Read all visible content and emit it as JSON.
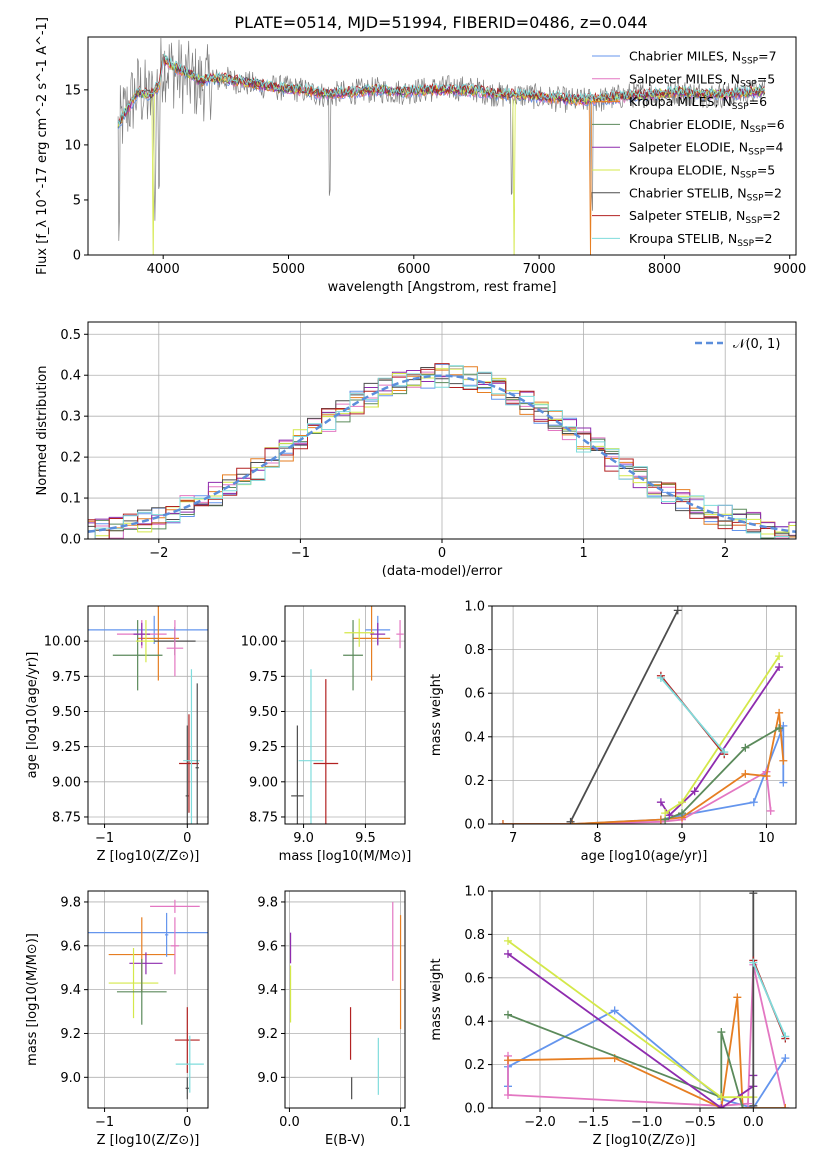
{
  "title": "PLATE=0514, MJD=51994, FIBERID=0486, z=0.044",
  "colors": {
    "Chabrier MILES": "#6495ED",
    "Salpeter MILES": "#E377C2",
    "Kroupa MILES": "#E67E22",
    "Chabrier ELODIE": "#5B8A5B",
    "Salpeter ELODIE": "#8E2CAE",
    "Kroupa ELODIE": "#D4E84A",
    "Chabrier STELIB": "#4D4D4D",
    "Salpeter STELIB": "#B22222",
    "Kroupa STELIB": "#7FDCDC",
    "data": "#7F7F7F",
    "normal": "#5B8EDB"
  },
  "chart_data": [
    {
      "id": "spectrum",
      "type": "line",
      "title": "PLATE=0514, MJD=51994, FIBERID=0486, z=0.044",
      "xlabel": "wavelength [Angstrom, rest frame]",
      "ylabel": "Flux [f_λ 10^-17 erg cm^-2 s^-1 A^-1]",
      "xlim": [
        3400,
        9050
      ],
      "ylim": [
        0,
        19.8
      ],
      "xticks": [
        4000,
        5000,
        6000,
        7000,
        8000,
        9000
      ],
      "yticks": [
        0,
        5,
        10,
        15
      ],
      "legend_position": "upper right",
      "legend": [
        {
          "name": "Chabrier MILES",
          "nssp": "7"
        },
        {
          "name": "Salpeter MILES",
          "nssp": "5"
        },
        {
          "name": "Kroupa MILES",
          "nssp": "6"
        },
        {
          "name": "Chabrier ELODIE",
          "nssp": "6"
        },
        {
          "name": "Salpeter ELODIE",
          "nssp": "4"
        },
        {
          "name": "Kroupa ELODIE",
          "nssp": "5"
        },
        {
          "name": "Chabrier STELIB",
          "nssp": "2"
        },
        {
          "name": "Salpeter STELIB",
          "nssp": "2"
        },
        {
          "name": "Kroupa STELIB",
          "nssp": "2"
        }
      ],
      "data_series": {
        "x": [
          3640,
          3700,
          3800,
          3900,
          3970,
          4000,
          4100,
          4200,
          4300,
          4400,
          4500,
          4700,
          4900,
          5100,
          5300,
          5500,
          5700,
          5900,
          6100,
          6300,
          6500,
          6700,
          6900,
          7100,
          7300,
          7500,
          7700,
          7900,
          8100,
          8300,
          8500,
          8700,
          8800
        ],
        "y": [
          11.5,
          13,
          15,
          14,
          16,
          17.5,
          16.5,
          16,
          15.5,
          15.8,
          16,
          15.5,
          15.2,
          15,
          14.5,
          14.8,
          15,
          14.8,
          15,
          15.2,
          15,
          14.5,
          14.5,
          14.2,
          14,
          14.1,
          14.5,
          14.6,
          14.8,
          14.6,
          14.5,
          14.8,
          15
        ]
      },
      "model_series": {
        "x": [
          3640,
          3700,
          3800,
          3900,
          3970,
          4000,
          4100,
          4200,
          4300,
          4400,
          4500,
          4700,
          4900,
          5100,
          5300,
          5500,
          5700,
          5900,
          6100,
          6300,
          6500,
          6700,
          6900,
          7100,
          7300,
          7500,
          7700,
          7900,
          8100,
          8300,
          8500,
          8700,
          8800
        ],
        "y": [
          11.8,
          13,
          14.8,
          14.5,
          15.5,
          17.8,
          17,
          16.5,
          15.8,
          16,
          16,
          15.6,
          15.2,
          15,
          14.6,
          14.8,
          15,
          14.8,
          15,
          15,
          14.9,
          14.6,
          14.5,
          14.3,
          14.1,
          14.2,
          14.4,
          14.6,
          14.8,
          14.6,
          14.6,
          14.8,
          14.9
        ]
      },
      "model_cutoffs": {
        "Kroupa ELODIE": [
          3920,
          6800
        ],
        "Kroupa MILES": [
          7410
        ]
      },
      "absorption_lines": [
        3650,
        3934,
        3968,
        5330,
        6780,
        7420
      ]
    },
    {
      "id": "residuals",
      "type": "histogram",
      "xlabel": "(data-model)/error",
      "ylabel": "Normed distribution",
      "xlim": [
        -2.5,
        2.5
      ],
      "ylim": [
        0,
        0.53
      ],
      "xticks": [
        -2,
        -1,
        0,
        1,
        2
      ],
      "yticks": [
        0,
        0.1,
        0.2,
        0.3,
        0.4,
        0.5
      ],
      "legend": [
        {
          "name": "N(0,1)",
          "style": "dashed"
        }
      ],
      "legend_position": "upper right",
      "bin_width": 0.1
    },
    {
      "id": "age-vs-Z",
      "type": "scatter",
      "xlabel": "Z [log10(Z/Z⊙)]",
      "ylabel": "age [log10(age/yr)]",
      "xlim": [
        -1.2,
        0.25
      ],
      "ylim": [
        8.7,
        10.25
      ],
      "xticks": [
        -1,
        0
      ],
      "yticks": [
        8.75,
        9.0,
        9.25,
        9.5,
        9.75,
        10.0
      ],
      "points": [
        {
          "m": "Chabrier MILES",
          "x": -0.4,
          "xerr": 0.95,
          "y": 10.08,
          "yerr": 0.1
        },
        {
          "m": "Salpeter MILES",
          "x": -0.55,
          "xerr": 0.3,
          "y": 10.05,
          "yerr": 0.1
        },
        {
          "m": "Kroupa MILES",
          "x": -0.35,
          "xerr": 0.25,
          "y": 10.02,
          "yerr": 0.3
        },
        {
          "m": "Chabrier ELODIE",
          "x": -0.6,
          "xerr": 0.3,
          "y": 9.9,
          "yerr": 0.25
        },
        {
          "m": "Salpeter ELODIE",
          "x": -0.55,
          "xerr": 0.1,
          "y": 10.05,
          "yerr": 0.08
        },
        {
          "m": "Kroupa ELODIE",
          "x": -0.5,
          "xerr": 0.12,
          "y": 10.0,
          "yerr": 0.15
        },
        {
          "m": "Chabrier STELIB",
          "x": -0.15,
          "xerr": 0.25,
          "y": 10.0,
          "yerr": 0.1
        },
        {
          "m": "Salpeter MILES",
          "x": -0.15,
          "xerr": 0.1,
          "y": 9.95,
          "yerr": 0.2
        },
        {
          "m": "Chabrier STELIB",
          "x": 0.0,
          "xerr": 0.02,
          "y": 8.9,
          "yerr": 0.5
        },
        {
          "m": "Salpeter STELIB",
          "x": 0.02,
          "xerr": 0.12,
          "y": 9.13,
          "yerr": 0.35
        },
        {
          "m": "Kroupa STELIB",
          "x": 0.05,
          "xerr": 0.1,
          "y": 9.15,
          "yerr": 0.65
        },
        {
          "m": "Chabrier STELIB",
          "x": 0.12,
          "xerr": 0.02,
          "y": 9.1,
          "yerr": 0.6
        }
      ]
    },
    {
      "id": "age-vs-mass",
      "type": "scatter",
      "xlabel": "mass [log10(M/M⊙)]",
      "ylabel": "",
      "xlim": [
        8.85,
        9.82
      ],
      "ylim": [
        8.7,
        10.25
      ],
      "xticks": [
        9.0,
        9.5
      ],
      "yticks": [
        8.75,
        9.0,
        9.25,
        9.5,
        9.75,
        10.0
      ],
      "points": [
        {
          "m": "Chabrier MILES",
          "x": 9.6,
          "xerr": 0.1,
          "y": 10.08,
          "yerr": 0.1
        },
        {
          "m": "Salpeter MILES",
          "x": 9.78,
          "xerr": 0.03,
          "y": 10.05,
          "yerr": 0.1
        },
        {
          "m": "Kroupa MILES",
          "x": 9.55,
          "xerr": 0.15,
          "y": 10.02,
          "yerr": 0.3
        },
        {
          "m": "Chabrier ELODIE",
          "x": 9.4,
          "xerr": 0.08,
          "y": 9.9,
          "yerr": 0.25
        },
        {
          "m": "Salpeter ELODIE",
          "x": 9.6,
          "xerr": 0.06,
          "y": 10.05,
          "yerr": 0.08
        },
        {
          "m": "Kroupa ELODIE",
          "x": 9.45,
          "xerr": 0.12,
          "y": 10.06,
          "yerr": 0.1
        },
        {
          "m": "Chabrier STELIB",
          "x": 8.95,
          "xerr": 0.05,
          "y": 8.9,
          "yerr": 0.5
        },
        {
          "m": "Salpeter STELIB",
          "x": 9.18,
          "xerr": 0.1,
          "y": 9.13,
          "yerr": 0.6
        },
        {
          "m": "Kroupa STELIB",
          "x": 9.06,
          "xerr": 0.1,
          "y": 9.15,
          "yerr": 0.65
        }
      ]
    },
    {
      "id": "mass-weight-vs-age",
      "type": "line",
      "xlabel": "age [log10(age/yr)]",
      "ylabel": "mass weight",
      "xlim": [
        6.75,
        10.35
      ],
      "ylim": [
        0,
        1.0
      ],
      "xticks": [
        7,
        8,
        9,
        10
      ],
      "yticks": [
        0,
        0.2,
        0.4,
        0.6,
        0.8,
        1.0
      ],
      "series": [
        {
          "name": "Chabrier MILES",
          "x": [
            6.88,
            7.7,
            8.75,
            9.0,
            9.85,
            10.2,
            10.2
          ],
          "y": [
            0.0,
            0.0,
            0.02,
            0.04,
            0.1,
            0.45,
            0.19
          ]
        },
        {
          "name": "Salpeter MILES",
          "x": [
            6.88,
            7.7,
            8.75,
            9.0,
            10.0,
            10.05
          ],
          "y": [
            0.0,
            0.0,
            0.01,
            0.02,
            0.24,
            0.06
          ]
        },
        {
          "name": "Kroupa MILES",
          "x": [
            6.88,
            7.7,
            8.75,
            9.0,
            9.75,
            10.0,
            10.15,
            10.2
          ],
          "y": [
            0.0,
            0.0,
            0.02,
            0.03,
            0.23,
            0.22,
            0.51,
            0.29
          ]
        },
        {
          "name": "Chabrier ELODIE",
          "x": [
            8.8,
            9.0,
            9.75,
            10.15
          ],
          "y": [
            0.02,
            0.05,
            0.35,
            0.44
          ]
        },
        {
          "name": "Salpeter ELODIE",
          "x": [
            8.75,
            8.85,
            9.15,
            10.15
          ],
          "y": [
            0.1,
            0.04,
            0.15,
            0.72
          ]
        },
        {
          "name": "Kroupa ELODIE",
          "x": [
            8.8,
            9.0,
            10.15
          ],
          "y": [
            0.05,
            0.1,
            0.77
          ]
        },
        {
          "name": "Chabrier STELIB",
          "x": [
            7.68,
            8.95
          ],
          "y": [
            0.01,
            0.98
          ]
        },
        {
          "name": "Salpeter STELIB",
          "x": [
            8.75,
            9.5
          ],
          "y": [
            0.68,
            0.32
          ]
        },
        {
          "name": "Kroupa STELIB",
          "x": [
            8.75,
            9.5
          ],
          "y": [
            0.67,
            0.33
          ]
        }
      ]
    },
    {
      "id": "mass-vs-Z",
      "type": "scatter",
      "xlabel": "Z [log10(Z/Z⊙)]",
      "ylabel": "mass [log10(M/M⊙)]",
      "xlim": [
        -1.2,
        0.25
      ],
      "ylim": [
        8.86,
        9.85
      ],
      "xticks": [
        -1,
        0
      ],
      "yticks": [
        9.0,
        9.2,
        9.4,
        9.6,
        9.8
      ],
      "points": [
        {
          "m": "Chabrier MILES",
          "x": -0.4,
          "xerr": 0.95,
          "y": 9.66,
          "yerr": 0.0
        },
        {
          "m": "Salpeter MILES",
          "x": -0.15,
          "xerr": 0.3,
          "y": 9.78,
          "yerr": 0.03
        },
        {
          "m": "Kroupa MILES",
          "x": -0.55,
          "xerr": 0.4,
          "y": 9.56,
          "yerr": 0.17
        },
        {
          "m": "Chabrier MILES",
          "x": -0.25,
          "xerr": 0.02,
          "y": 9.65,
          "yerr": 0.1
        },
        {
          "m": "Salpeter ELODIE",
          "x": -0.5,
          "xerr": 0.2,
          "y": 9.52,
          "yerr": 0.05
        },
        {
          "m": "Kroupa ELODIE",
          "x": -0.65,
          "xerr": 0.3,
          "y": 9.43,
          "yerr": 0.16
        },
        {
          "m": "Chabrier ELODIE",
          "x": -0.55,
          "xerr": 0.3,
          "y": 9.39,
          "yerr": 0.15
        },
        {
          "m": "Salpeter MILES",
          "x": -0.15,
          "xerr": 0.05,
          "y": 9.6,
          "yerr": 0.13
        },
        {
          "m": "Salpeter STELIB",
          "x": 0.0,
          "xerr": 0.15,
          "y": 9.17,
          "yerr": 0.15
        },
        {
          "m": "Kroupa STELIB",
          "x": 0.03,
          "xerr": 0.17,
          "y": 9.06,
          "yerr": 0.13
        },
        {
          "m": "Chabrier STELIB",
          "x": 0.0,
          "xerr": 0.02,
          "y": 8.95,
          "yerr": 0.05
        }
      ]
    },
    {
      "id": "mass-vs-ebv",
      "type": "scatter",
      "xlabel": "E(B-V)",
      "ylabel": "",
      "xlim": [
        -0.004,
        0.104
      ],
      "ylim": [
        8.86,
        9.85
      ],
      "xticks": [
        0.0,
        0.1
      ],
      "yticks": [
        9.0,
        9.2,
        9.4,
        9.6,
        9.8
      ],
      "points": [
        {
          "m": "Salpeter ELODIE",
          "x": 0.001,
          "xerr": 0.0,
          "y": 9.59,
          "yerr": 0.07
        },
        {
          "m": "Kroupa ELODIE",
          "x": 0.001,
          "xerr": 0.0,
          "y": 9.38,
          "yerr": 0.13
        },
        {
          "m": "Salpeter STELIB",
          "x": 0.055,
          "xerr": 0.0,
          "y": 9.2,
          "yerr": 0.12
        },
        {
          "m": "Chabrier STELIB",
          "x": 0.056,
          "xerr": 0.0,
          "y": 8.95,
          "yerr": 0.05
        },
        {
          "m": "Kroupa STELIB",
          "x": 0.08,
          "xerr": 0.0,
          "y": 9.05,
          "yerr": 0.13
        },
        {
          "m": "Salpeter MILES",
          "x": 0.093,
          "xerr": 0.0,
          "y": 9.62,
          "yerr": 0.18
        },
        {
          "m": "Kroupa MILES",
          "x": 0.1,
          "xerr": 0.0,
          "y": 9.48,
          "yerr": 0.26
        }
      ]
    },
    {
      "id": "mass-weight-vs-Z",
      "type": "line",
      "xlabel": "Z [log10(Z/Z⊙)]",
      "ylabel": "mass weight",
      "xlim": [
        -2.45,
        0.4
      ],
      "ylim": [
        0,
        1.0
      ],
      "xticks": [
        -2.0,
        -1.5,
        -1.0,
        -0.5,
        0.0
      ],
      "yticks": [
        0,
        0.2,
        0.4,
        0.6,
        0.8,
        1.0
      ],
      "series": [
        {
          "name": "Chabrier MILES",
          "x": [
            -2.3,
            -2.3,
            -1.3,
            -0.3,
            0.0,
            0.3
          ],
          "y": [
            0.1,
            0.19,
            0.45,
            0.04,
            0.0,
            0.23
          ]
        },
        {
          "name": "Salpeter MILES",
          "x": [
            -2.3,
            -2.3,
            -0.3,
            -0.05,
            0.0,
            0.3
          ],
          "y": [
            0.24,
            0.06,
            0.01,
            0.02,
            0.66,
            0.0
          ]
        },
        {
          "name": "Kroupa MILES",
          "x": [
            -2.3,
            -1.3,
            -0.3,
            -0.15,
            -0.1,
            0.3
          ],
          "y": [
            0.22,
            0.23,
            0.0,
            0.51,
            0.0,
            0.0
          ]
        },
        {
          "name": "Chabrier ELODIE",
          "x": [
            -2.3,
            -0.3,
            -0.3,
            -0.1
          ],
          "y": [
            0.43,
            0.05,
            0.35,
            0.0
          ]
        },
        {
          "name": "Salpeter ELODIE",
          "x": [
            -2.3,
            -0.3,
            0.0,
            0.0
          ],
          "y": [
            0.71,
            0.0,
            0.1,
            0.15
          ]
        },
        {
          "name": "Kroupa ELODIE",
          "x": [
            -2.3,
            -0.3,
            0.0
          ],
          "y": [
            0.77,
            0.05,
            0.05
          ]
        },
        {
          "name": "Chabrier STELIB",
          "x": [
            0.0,
            0.0
          ],
          "y": [
            0.01,
            0.99
          ]
        },
        {
          "name": "Salpeter STELIB",
          "x": [
            0.0,
            0.3
          ],
          "y": [
            0.68,
            0.32
          ]
        },
        {
          "name": "Kroupa STELIB",
          "x": [
            0.0,
            0.3
          ],
          "y": [
            0.67,
            0.33
          ]
        }
      ]
    }
  ]
}
